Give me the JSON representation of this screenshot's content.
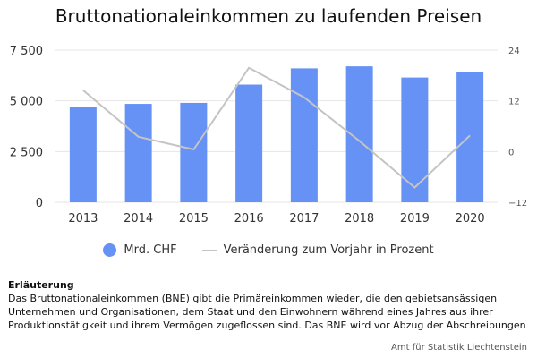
{
  "title": "Bruttonationaleinkommen zu laufenden Preisen",
  "colors": {
    "bar": "#6691f5",
    "line": "#c4c4c4",
    "grid": "#e6e6e6"
  },
  "chart_data": {
    "type": "bar",
    "title": "Bruttonationaleinkommen zu laufenden Preisen",
    "categories": [
      "2013",
      "2014",
      "2015",
      "2016",
      "2017",
      "2018",
      "2019",
      "2020"
    ],
    "series": [
      {
        "name": "Mrd. CHF",
        "type": "bar",
        "axis": "left",
        "values": [
          4700,
          4850,
          4900,
          5800,
          6600,
          6700,
          6150,
          6400
        ]
      },
      {
        "name": "Veränderung zum Vorjahr in Prozent",
        "type": "line",
        "axis": "right",
        "values": [
          14.5,
          3.5,
          0.5,
          19.8,
          12.8,
          2.5,
          -8.5,
          3.8
        ]
      }
    ],
    "y_left": {
      "ylim": [
        0,
        7500
      ],
      "ticks": [
        0,
        2500,
        5000,
        7500
      ],
      "tick_labels": [
        "0",
        "2 500",
        "5 000",
        "7 500"
      ]
    },
    "y_right": {
      "ylim": [
        -12,
        24
      ],
      "ticks": [
        -12,
        0,
        12,
        24
      ],
      "tick_labels": [
        "−12",
        "0",
        "12",
        "24"
      ]
    },
    "grid": true,
    "legend_position": "bottom"
  },
  "legend": [
    {
      "label": "Mrd. CHF",
      "marker": "dot"
    },
    {
      "label": "Veränderung zum Vorjahr in Prozent",
      "marker": "line"
    }
  ],
  "note": {
    "heading": "Erläuterung",
    "lines": [
      "Das Bruttonationaleinkommen (BNE) gibt die Primäreinkommen wieder, die den gebietsansässigen",
      "Unternehmen und Organisationen, dem Staat und den Einwohnern während eines Jahres aus ihrer",
      "Produktionstätigkeit und ihrem Vermögen zugeflossen sind. Das BNE wird vor Abzug der Abschreibungen"
    ]
  },
  "source": "Amt für Statistik Liechtenstein"
}
